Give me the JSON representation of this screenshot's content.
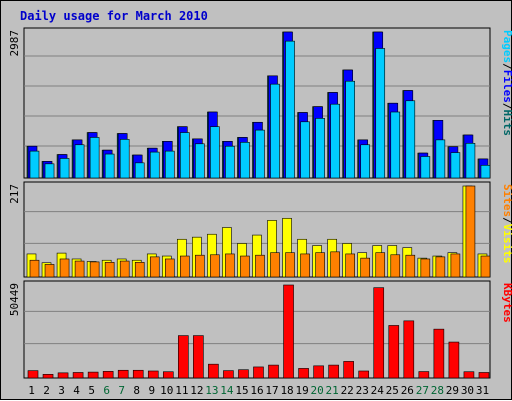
{
  "title": "Daily usage for March 2010",
  "colors": {
    "background": "#c0c0c0",
    "gridline": "#808080",
    "title": "#0000cc",
    "pages": "#00ccff",
    "files": "#0000ff",
    "hits": "#006666",
    "sites": "#ff8000",
    "visits": "#ffff00",
    "kbytes": "#ff0000",
    "weekday_label": "#000000",
    "weekend_label": "#006633"
  },
  "chart_data": [
    {
      "type": "bar",
      "panel": "requests",
      "ymax_label": "2987",
      "ylim": [
        0,
        2987
      ],
      "grid": true,
      "right_label_parts": [
        "Pages",
        "/",
        "Files",
        "/",
        "Hits"
      ],
      "right_label_colors": [
        "pages",
        "black",
        "files",
        "black",
        "hits"
      ],
      "categories": [
        "1",
        "2",
        "3",
        "4",
        "5",
        "6",
        "7",
        "8",
        "9",
        "10",
        "11",
        "12",
        "13",
        "14",
        "15",
        "16",
        "17",
        "18",
        "19",
        "20",
        "21",
        "22",
        "23",
        "24",
        "25",
        "26",
        "27",
        "28",
        "29",
        "30",
        "31"
      ],
      "series": [
        {
          "name": "Hits",
          "values": [
            650,
            340,
            480,
            780,
            930,
            570,
            910,
            470,
            610,
            750,
            1050,
            800,
            1350,
            750,
            830,
            1140,
            2090,
            2987,
            1340,
            1460,
            1750,
            2210,
            780,
            2987,
            1530,
            1790,
            510,
            1180,
            640,
            880,
            390
          ]
        },
        {
          "name": "Files",
          "values": [
            650,
            340,
            480,
            780,
            930,
            570,
            910,
            470,
            610,
            750,
            1050,
            800,
            1350,
            750,
            830,
            1140,
            2090,
            2987,
            1340,
            1460,
            1750,
            2210,
            780,
            2987,
            1530,
            1790,
            510,
            1180,
            640,
            880,
            390
          ]
        },
        {
          "name": "Pages",
          "values": [
            550,
            290,
            400,
            680,
            830,
            490,
            790,
            310,
            530,
            550,
            930,
            700,
            1050,
            650,
            730,
            980,
            1920,
            2800,
            1150,
            1220,
            1510,
            1980,
            680,
            2650,
            1350,
            1580,
            440,
            780,
            520,
            710,
            260
          ]
        }
      ]
    },
    {
      "type": "bar",
      "panel": "visitors",
      "ymax_label": "217",
      "ylim": [
        0,
        217
      ],
      "grid": true,
      "right_label_parts": [
        "Sites",
        "/",
        "Visits"
      ],
      "right_label_colors": [
        "sites",
        "black",
        "visits"
      ],
      "categories": [
        "1",
        "2",
        "3",
        "4",
        "5",
        "6",
        "7",
        "8",
        "9",
        "10",
        "11",
        "12",
        "13",
        "14",
        "15",
        "16",
        "17",
        "18",
        "19",
        "20",
        "21",
        "22",
        "23",
        "24",
        "25",
        "26",
        "27",
        "28",
        "29",
        "30",
        "31"
      ],
      "series": [
        {
          "name": "Visits",
          "values": [
            55,
            34,
            57,
            43,
            37,
            40,
            43,
            40,
            55,
            50,
            90,
            95,
            102,
            118,
            80,
            100,
            135,
            140,
            90,
            75,
            90,
            80,
            58,
            75,
            75,
            70,
            45,
            50,
            58,
            217,
            55
          ]
        },
        {
          "name": "Sites",
          "values": [
            40,
            30,
            43,
            38,
            36,
            35,
            38,
            35,
            48,
            43,
            50,
            52,
            53,
            55,
            50,
            52,
            58,
            58,
            55,
            58,
            60,
            55,
            45,
            58,
            53,
            52,
            43,
            48,
            55,
            217,
            50
          ]
        }
      ]
    },
    {
      "type": "bar",
      "panel": "kbytes",
      "ymax_label": "50449",
      "ylim": [
        0,
        50449
      ],
      "grid": true,
      "right_label_parts": [
        "KBytes"
      ],
      "right_label_colors": [
        "kbytes"
      ],
      "categories": [
        "1",
        "2",
        "3",
        "4",
        "5",
        "6",
        "7",
        "8",
        "9",
        "10",
        "11",
        "12",
        "13",
        "14",
        "15",
        "16",
        "17",
        "18",
        "19",
        "20",
        "21",
        "22",
        "23",
        "24",
        "25",
        "26",
        "27",
        "28",
        "29",
        "30",
        "31"
      ],
      "series": [
        {
          "name": "KBytes",
          "values": [
            4000,
            2000,
            2800,
            3000,
            3200,
            3600,
            4200,
            4200,
            3800,
            3400,
            23000,
            23000,
            7500,
            4000,
            4500,
            6000,
            7000,
            50449,
            5200,
            6600,
            7000,
            9000,
            3800,
            49000,
            28500,
            31000,
            3500,
            26500,
            19500,
            3400,
            3000
          ]
        }
      ]
    }
  ],
  "x_axis": {
    "labels": [
      "1",
      "2",
      "3",
      "4",
      "5",
      "6",
      "7",
      "8",
      "9",
      "10",
      "11",
      "12",
      "13",
      "14",
      "15",
      "16",
      "17",
      "18",
      "19",
      "20",
      "21",
      "22",
      "23",
      "24",
      "25",
      "26",
      "27",
      "28",
      "29",
      "30",
      "31"
    ],
    "weekend_days": [
      "6",
      "7",
      "13",
      "14",
      "20",
      "21",
      "27",
      "28"
    ]
  }
}
